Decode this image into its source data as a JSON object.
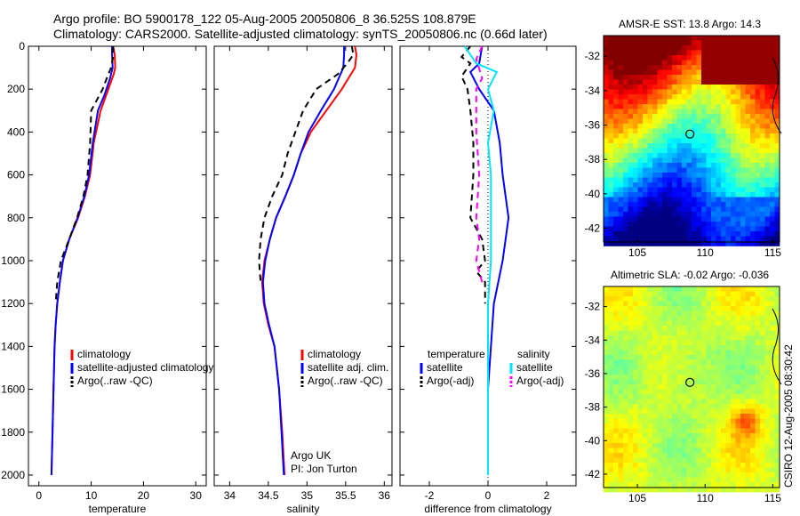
{
  "header": {
    "line1": "Argo profile: BO 5900178_122 05-Aug-2005 20050806_8 36.525S 108.879E",
    "line2": "Climatology: CARS2000. Satellite-adjusted climatology: synTS_20050806.nc (0.66d later)"
  },
  "side_label": "CSIRO 12-Aug-2005 08:30:42",
  "colors": {
    "climatology": "#ff0000",
    "satellite": "#0000ff",
    "argo": "#000000",
    "salinity_satellite": "#00e5ff",
    "salinity_argo": "#ff00ff"
  },
  "chart_data": [
    {
      "type": "line",
      "xlabel": "temperature",
      "ylabel": "",
      "xlim": [
        -2,
        32
      ],
      "ylim": [
        2050,
        0
      ],
      "xticks": [
        "0",
        "10",
        "20",
        "30"
      ],
      "yticks": [
        "0",
        "200",
        "400",
        "600",
        "800",
        "1000",
        "1200",
        "1400",
        "1600",
        "1800",
        "2000"
      ],
      "legend": [
        "climatology",
        "satellite-adjusted climatology",
        "Argo(..raw -QC)"
      ],
      "series": [
        {
          "name": "climatology",
          "color": "#ff0000",
          "style": "solid",
          "points": [
            [
              14.2,
              0
            ],
            [
              14.5,
              40
            ],
            [
              14.6,
              100
            ],
            [
              14.3,
              130
            ],
            [
              13.0,
              220
            ],
            [
              11.8,
              300
            ],
            [
              10.5,
              450
            ],
            [
              9.8,
              600
            ],
            [
              8.8,
              700
            ],
            [
              7.5,
              800
            ],
            [
              5.8,
              900
            ],
            [
              4.6,
              1000
            ],
            [
              4.0,
              1100
            ],
            [
              3.5,
              1200
            ],
            [
              3.2,
              1300
            ],
            [
              3.0,
              1400
            ],
            [
              2.8,
              1600
            ],
            [
              2.6,
              1800
            ],
            [
              2.4,
              2000
            ]
          ]
        },
        {
          "name": "satellite-adjusted climatology",
          "color": "#0000ff",
          "style": "solid",
          "points": [
            [
              14.0,
              0
            ],
            [
              14.0,
              40
            ],
            [
              14.1,
              100
            ],
            [
              13.6,
              150
            ],
            [
              12.5,
              230
            ],
            [
              11.3,
              300
            ],
            [
              10.3,
              450
            ],
            [
              9.6,
              600
            ],
            [
              8.7,
              700
            ],
            [
              7.4,
              800
            ],
            [
              5.8,
              900
            ],
            [
              4.6,
              1000
            ],
            [
              4.0,
              1100
            ],
            [
              3.5,
              1200
            ],
            [
              3.2,
              1300
            ],
            [
              3.0,
              1400
            ],
            [
              2.8,
              1600
            ],
            [
              2.6,
              1800
            ],
            [
              2.4,
              2000
            ]
          ]
        },
        {
          "name": "Argo(..raw -QC)",
          "color": "#000000",
          "style": "dashed",
          "points": [
            [
              14.2,
              0
            ],
            [
              14.2,
              50
            ],
            [
              13.8,
              100
            ],
            [
              12.8,
              160
            ],
            [
              12.2,
              200
            ],
            [
              10.0,
              300
            ],
            [
              9.8,
              450
            ],
            [
              9.3,
              600
            ],
            [
              8.5,
              700
            ],
            [
              7.3,
              800
            ],
            [
              5.8,
              900
            ],
            [
              4.2,
              1000
            ],
            [
              3.5,
              1100
            ],
            [
              3.2,
              1200
            ]
          ]
        }
      ]
    },
    {
      "type": "line",
      "xlabel": "salinity",
      "ylabel": "",
      "xlim": [
        33.8,
        36.1
      ],
      "ylim": [
        2050,
        0
      ],
      "xticks": [
        "34",
        "34.5",
        "35",
        "35.5",
        "36"
      ],
      "legend": [
        "climatology",
        "satellite adj. clim.",
        "Argo(..raw -QC)"
      ],
      "annotation": [
        "Argo UK",
        "PI: Jon Turton"
      ],
      "series": [
        {
          "name": "climatology",
          "color": "#ff0000",
          "style": "solid",
          "points": [
            [
              35.62,
              0
            ],
            [
              35.64,
              40
            ],
            [
              35.62,
              100
            ],
            [
              35.45,
              200
            ],
            [
              35.25,
              300
            ],
            [
              35.05,
              400
            ],
            [
              34.92,
              500
            ],
            [
              34.83,
              600
            ],
            [
              34.72,
              700
            ],
            [
              34.6,
              800
            ],
            [
              34.52,
              900
            ],
            [
              34.45,
              1000
            ],
            [
              34.42,
              1100
            ],
            [
              34.44,
              1200
            ],
            [
              34.5,
              1300
            ],
            [
              34.58,
              1400
            ],
            [
              34.64,
              1600
            ],
            [
              34.68,
              1800
            ],
            [
              34.71,
              2000
            ]
          ]
        },
        {
          "name": "satellite adj. clim.",
          "color": "#0000ff",
          "style": "solid",
          "points": [
            [
              35.48,
              0
            ],
            [
              35.48,
              40
            ],
            [
              35.47,
              100
            ],
            [
              35.35,
              200
            ],
            [
              35.18,
              300
            ],
            [
              35.02,
              400
            ],
            [
              34.92,
              500
            ],
            [
              34.83,
              600
            ],
            [
              34.72,
              700
            ],
            [
              34.6,
              800
            ],
            [
              34.52,
              900
            ],
            [
              34.46,
              1000
            ],
            [
              34.43,
              1100
            ],
            [
              34.45,
              1200
            ],
            [
              34.51,
              1300
            ],
            [
              34.58,
              1400
            ],
            [
              34.64,
              1600
            ],
            [
              34.67,
              1800
            ],
            [
              34.7,
              2000
            ]
          ]
        },
        {
          "name": "Argo(..raw -QC)",
          "color": "#000000",
          "style": "dashed",
          "points": [
            [
              35.58,
              0
            ],
            [
              35.6,
              40
            ],
            [
              35.52,
              80
            ],
            [
              35.4,
              130
            ],
            [
              35.12,
              200
            ],
            [
              34.95,
              300
            ],
            [
              34.85,
              400
            ],
            [
              34.75,
              500
            ],
            [
              34.68,
              600
            ],
            [
              34.55,
              700
            ],
            [
              34.45,
              800
            ],
            [
              34.4,
              900
            ],
            [
              34.38,
              1000
            ],
            [
              34.4,
              1100
            ]
          ]
        }
      ]
    },
    {
      "type": "line",
      "xlabel": "difference from climatology",
      "ylabel": "",
      "xlim": [
        -3,
        3
      ],
      "ylim": [
        2050,
        0
      ],
      "xticks": [
        "-2",
        "0",
        "2"
      ],
      "legend_temperature": {
        "title": "temperature",
        "items": [
          "satellite",
          "Argo(-adj)"
        ]
      },
      "legend_salinity": {
        "title": "salinity",
        "items": [
          "satellite",
          "Argo(-adj)"
        ]
      },
      "series": [
        {
          "name": "temperature satellite",
          "color": "#0000ff",
          "style": "solid",
          "points": [
            [
              -0.2,
              0
            ],
            [
              -0.3,
              80
            ],
            [
              -0.6,
              120
            ],
            [
              -0.3,
              200
            ],
            [
              0.2,
              300
            ],
            [
              0.4,
              450
            ],
            [
              0.5,
              600
            ],
            [
              0.7,
              800
            ],
            [
              0.5,
              1000
            ],
            [
              0.2,
              1200
            ],
            [
              0.1,
              1400
            ],
            [
              0.0,
              1600
            ],
            [
              0.0,
              1800
            ],
            [
              0.0,
              2000
            ]
          ]
        },
        {
          "name": "temperature Argo(-adj)",
          "color": "#000000",
          "style": "dashed",
          "points": [
            [
              -0.6,
              0
            ],
            [
              -0.9,
              50
            ],
            [
              -0.6,
              80
            ],
            [
              -0.9,
              140
            ],
            [
              -0.7,
              200
            ],
            [
              -0.6,
              300
            ],
            [
              -0.5,
              450
            ],
            [
              -0.5,
              600
            ],
            [
              -0.6,
              800
            ],
            [
              -0.2,
              900
            ],
            [
              -0.1,
              1000
            ],
            [
              -0.4,
              1050
            ],
            [
              -0.1,
              1100
            ],
            [
              -0.1,
              1200
            ]
          ]
        },
        {
          "name": "salinity satellite",
          "color": "#00e5ff",
          "style": "solid",
          "points": [
            [
              -0.8,
              0
            ],
            [
              -0.4,
              80
            ],
            [
              0.3,
              120
            ],
            [
              0.0,
              200
            ],
            [
              0.2,
              300
            ],
            [
              0.0,
              450
            ],
            [
              0.1,
              600
            ],
            [
              0.1,
              800
            ],
            [
              0.1,
              1000
            ],
            [
              0.0,
              1200
            ],
            [
              0.0,
              1600
            ],
            [
              0.0,
              2000
            ]
          ]
        },
        {
          "name": "salinity Argo(-adj)",
          "color": "#ff00ff",
          "style": "dashed",
          "points": [
            [
              -0.2,
              0
            ],
            [
              -0.4,
              60
            ],
            [
              -0.2,
              150
            ],
            [
              -0.4,
              200
            ],
            [
              -0.4,
              400
            ],
            [
              -0.3,
              600
            ],
            [
              -0.4,
              800
            ],
            [
              -0.3,
              900
            ],
            [
              -0.4,
              1000
            ],
            [
              -0.2,
              1100
            ]
          ]
        }
      ]
    },
    {
      "type": "heatmap",
      "title": "AMSR-E SST: 13.8 Argo: 14.3",
      "xlim": [
        102.5,
        115.5
      ],
      "ylim": [
        -42.8,
        -30.8
      ],
      "xticks": [
        "105",
        "110",
        "115"
      ],
      "yticks": [
        "-32",
        "-34",
        "-36",
        "-38",
        "-40",
        "-42"
      ],
      "marker": [
        108.879,
        -36.525
      ]
    },
    {
      "type": "heatmap",
      "title": "Altimetric SLA: -0.02 Argo: -0.036",
      "xlim": [
        102.5,
        115.5
      ],
      "ylim": [
        -42.8,
        -30.8
      ],
      "xticks": [
        "105",
        "110",
        "115"
      ],
      "yticks": [
        "-32",
        "-34",
        "-36",
        "-38",
        "-40",
        "-42"
      ],
      "marker": [
        108.879,
        -36.525
      ]
    }
  ]
}
